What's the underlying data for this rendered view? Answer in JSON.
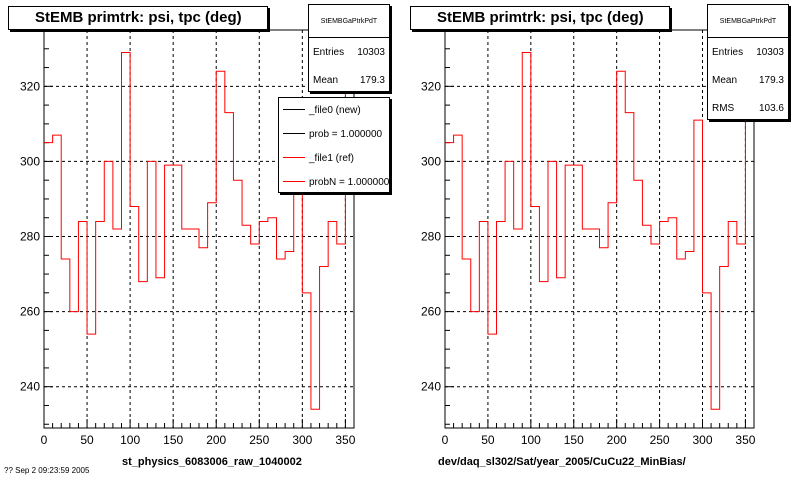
{
  "page": {
    "footer_stamp": "?? Sep  2 09:23:59 2005"
  },
  "chart_data": [
    {
      "type": "line",
      "title": "StEMB primtrk: psi, tpc (deg)",
      "xlabel": "st_physics_6083006_raw_1040002",
      "ylabel": "",
      "xlim": [
        0,
        360
      ],
      "ylim": [
        229,
        335
      ],
      "xticks": [
        0,
        50,
        100,
        150,
        200,
        250,
        300,
        350
      ],
      "yticks": [
        240,
        260,
        280,
        300,
        320
      ],
      "grid": true,
      "stats": {
        "name": "StEMBGaPtrkPdT",
        "entries_label": "Entries",
        "entries": "10303",
        "mean_label": "Mean",
        "mean": "179.3"
      },
      "legend": {
        "placement": "top-right",
        "entries": [
          {
            "label": "_file0 (new)",
            "color": "#000000"
          },
          {
            "label": "prob = 1.000000",
            "color": "#000000"
          },
          {
            "label": "_file1 (ref)",
            "color": "#ff0000"
          },
          {
            "label": "probN = 1.000000",
            "color": "#ff0000"
          }
        ]
      },
      "series": [
        {
          "color": "#ff0000",
          "bin_edges": [
            0,
            10,
            20,
            30,
            40,
            50,
            60,
            70,
            80,
            90,
            100,
            110,
            120,
            130,
            140,
            150,
            160,
            170,
            180,
            190,
            200,
            210,
            220,
            230,
            240,
            250,
            260,
            270,
            280,
            290,
            300,
            310,
            320,
            330,
            340,
            350,
            360
          ],
          "values": [
            305,
            307,
            274,
            260,
            284,
            254,
            284,
            300,
            282,
            329,
            288,
            268,
            300,
            269,
            299,
            299,
            282,
            282,
            277,
            289,
            324,
            313,
            295,
            283,
            278,
            284,
            285,
            274,
            276,
            311,
            265,
            234,
            272,
            284,
            278,
            323
          ]
        }
      ]
    },
    {
      "type": "line",
      "title": "StEMB primtrk: psi, tpc (deg)",
      "xlabel": "dev/daq_sl302/Sat/year_2005/CuCu22_MinBias/",
      "ylabel": "",
      "xlim": [
        0,
        360
      ],
      "ylim": [
        229,
        335
      ],
      "xticks": [
        0,
        50,
        100,
        150,
        200,
        250,
        300,
        350
      ],
      "yticks": [
        240,
        260,
        280,
        300,
        320
      ],
      "grid": true,
      "stats": {
        "name": "StEMBGaPtrkPdT",
        "entries_label": "Entries",
        "entries": "10303",
        "mean_label": "Mean",
        "mean": "179.3",
        "rms_label": "RMS",
        "rms": "103.6"
      },
      "series": [
        {
          "color": "#ff0000",
          "bin_edges": [
            0,
            10,
            20,
            30,
            40,
            50,
            60,
            70,
            80,
            90,
            100,
            110,
            120,
            130,
            140,
            150,
            160,
            170,
            180,
            190,
            200,
            210,
            220,
            230,
            240,
            250,
            260,
            270,
            280,
            290,
            300,
            310,
            320,
            330,
            340,
            350,
            360
          ],
          "values": [
            305,
            307,
            274,
            260,
            284,
            254,
            284,
            300,
            282,
            329,
            288,
            268,
            300,
            269,
            299,
            299,
            282,
            282,
            277,
            289,
            324,
            313,
            295,
            283,
            278,
            284,
            285,
            274,
            276,
            311,
            265,
            234,
            272,
            284,
            278,
            323
          ]
        }
      ]
    }
  ]
}
